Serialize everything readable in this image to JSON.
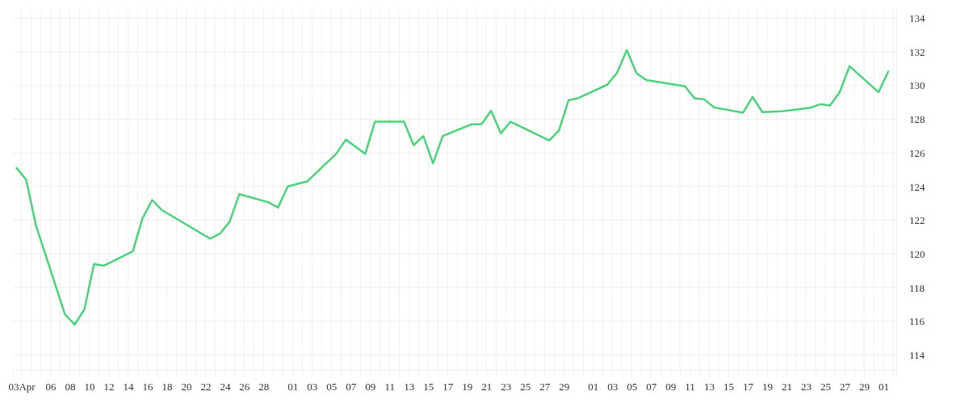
{
  "chart_data": {
    "type": "line",
    "x": [
      "--04-03",
      "--04-04",
      "--04-05",
      "--04-08",
      "--04-09",
      "--04-10",
      "--04-11",
      "--04-12",
      "--04-15",
      "--04-16",
      "--04-17",
      "--04-18",
      "--04-23",
      "--04-24",
      "--04-25",
      "--04-26",
      "--04-29",
      "--04-30",
      "--05-01",
      "--05-03",
      "--05-06",
      "--05-07",
      "--05-08",
      "--05-09",
      "--05-10",
      "--05-13",
      "--05-14",
      "--05-15",
      "--05-16",
      "--05-17",
      "--05-20",
      "--05-21",
      "--05-22",
      "--05-23",
      "--05-24",
      "--05-28",
      "--05-29",
      "--05-30",
      "--05-31",
      "--06-03",
      "--06-04",
      "--06-05",
      "--06-06",
      "--06-07",
      "--06-11",
      "--06-12",
      "--06-13",
      "--06-14",
      "--06-17",
      "--06-18",
      "--06-19",
      "--06-21",
      "--06-24",
      "--06-25",
      "--06-26",
      "--06-27",
      "--06-28",
      "--07-01",
      "--07-02"
    ],
    "series": [
      {
        "color": "#4cd27a",
        "values": [
          125.1,
          124.4,
          121.7,
          116.4,
          115.8,
          116.7,
          119.4,
          119.3,
          120.15,
          122.1,
          123.2,
          122.6,
          120.9,
          121.2,
          121.9,
          123.55,
          123.06,
          122.75,
          124.0,
          124.3,
          125.94,
          126.78,
          126.37,
          125.93,
          127.85,
          127.85,
          126.45,
          127.0,
          125.38,
          127.0,
          127.7,
          127.7,
          128.5,
          127.16,
          127.85,
          126.73,
          127.32,
          129.13,
          129.25,
          130.05,
          130.75,
          132.1,
          130.73,
          130.33,
          129.95,
          129.23,
          129.18,
          128.7,
          128.38,
          129.32,
          128.42,
          128.47,
          128.68,
          128.89,
          128.81,
          129.62,
          131.15,
          129.6,
          130.83
        ]
      }
    ],
    "xlim": [
      "--04-02T15:00",
      "--07-02T20:00"
    ],
    "ylim": [
      113.1,
      134.5
    ],
    "yticks": [
      114,
      116,
      118,
      120,
      122,
      124,
      126,
      128,
      130,
      132,
      134
    ],
    "xticks": [
      {
        "value": "--04-03T12:00",
        "label": "03Apr"
      },
      {
        "value": "--04-04T12:00",
        "label": null
      },
      {
        "value": "--04-05T12:00",
        "label": null
      },
      {
        "value": "--04-06T12:00",
        "label": "06"
      },
      {
        "value": "--04-07T12:00",
        "label": null
      },
      {
        "value": "--04-08T12:00",
        "label": "08"
      },
      {
        "value": "--04-09T12:00",
        "label": null
      },
      {
        "value": "--04-10T12:00",
        "label": "10"
      },
      {
        "value": "--04-11T12:00",
        "label": null
      },
      {
        "value": "--04-12T12:00",
        "label": "12"
      },
      {
        "value": "--04-13T12:00",
        "label": null
      },
      {
        "value": "--04-14T12:00",
        "label": "14"
      },
      {
        "value": "--04-15T12:00",
        "label": null
      },
      {
        "value": "--04-16T12:00",
        "label": "16"
      },
      {
        "value": "--04-17T12:00",
        "label": null
      },
      {
        "value": "--04-18T12:00",
        "label": "18"
      },
      {
        "value": "--04-19T12:00",
        "label": null
      },
      {
        "value": "--04-20T12:00",
        "label": "20"
      },
      {
        "value": "--04-21T12:00",
        "label": null
      },
      {
        "value": "--04-22T12:00",
        "label": "22"
      },
      {
        "value": "--04-23T12:00",
        "label": null
      },
      {
        "value": "--04-24T12:00",
        "label": "24"
      },
      {
        "value": "--04-25T12:00",
        "label": null
      },
      {
        "value": "--04-26T12:00",
        "label": "26"
      },
      {
        "value": "--04-27T12:00",
        "label": null
      },
      {
        "value": "--04-28T12:00",
        "label": "28"
      },
      {
        "value": "--04-29T12:00",
        "label": null
      },
      {
        "value": "--04-30T12:00",
        "label": null
      },
      {
        "value": "--05-01T12:00",
        "label": "01"
      },
      {
        "value": "--05-02T12:00",
        "label": null
      },
      {
        "value": "--05-03T12:00",
        "label": "03"
      },
      {
        "value": "--05-04T12:00",
        "label": null
      },
      {
        "value": "--05-05T12:00",
        "label": "05"
      },
      {
        "value": "--05-06T12:00",
        "label": null
      },
      {
        "value": "--05-07T12:00",
        "label": "07"
      },
      {
        "value": "--05-08T12:00",
        "label": null
      },
      {
        "value": "--05-09T12:00",
        "label": "09"
      },
      {
        "value": "--05-10T12:00",
        "label": null
      },
      {
        "value": "--05-11T12:00",
        "label": "11"
      },
      {
        "value": "--05-12T12:00",
        "label": null
      },
      {
        "value": "--05-13T12:00",
        "label": "13"
      },
      {
        "value": "--05-14T12:00",
        "label": null
      },
      {
        "value": "--05-15T12:00",
        "label": "15"
      },
      {
        "value": "--05-16T12:00",
        "label": null
      },
      {
        "value": "--05-17T12:00",
        "label": "17"
      },
      {
        "value": "--05-18T12:00",
        "label": null
      },
      {
        "value": "--05-19T12:00",
        "label": "19"
      },
      {
        "value": "--05-20T12:00",
        "label": null
      },
      {
        "value": "--05-21T12:00",
        "label": "21"
      },
      {
        "value": "--05-22T12:00",
        "label": null
      },
      {
        "value": "--05-23T12:00",
        "label": "23"
      },
      {
        "value": "--05-24T12:00",
        "label": null
      },
      {
        "value": "--05-25T12:00",
        "label": "25"
      },
      {
        "value": "--05-26T12:00",
        "label": null
      },
      {
        "value": "--05-27T12:00",
        "label": "27"
      },
      {
        "value": "--05-28T12:00",
        "label": null
      },
      {
        "value": "--05-29T12:00",
        "label": "29"
      },
      {
        "value": "--05-30T12:00",
        "label": null
      },
      {
        "value": "--05-31T12:00",
        "label": null
      },
      {
        "value": "--06-01T12:00",
        "label": "01"
      },
      {
        "value": "--06-02T12:00",
        "label": null
      },
      {
        "value": "--06-03T12:00",
        "label": "03"
      },
      {
        "value": "--06-04T12:00",
        "label": null
      },
      {
        "value": "--06-05T12:00",
        "label": "05"
      },
      {
        "value": "--06-06T12:00",
        "label": null
      },
      {
        "value": "--06-07T12:00",
        "label": "07"
      },
      {
        "value": "--06-08T12:00",
        "label": null
      },
      {
        "value": "--06-09T12:00",
        "label": "09"
      },
      {
        "value": "--06-10T12:00",
        "label": null
      },
      {
        "value": "--06-11T12:00",
        "label": "11"
      },
      {
        "value": "--06-12T12:00",
        "label": null
      },
      {
        "value": "--06-13T12:00",
        "label": "13"
      },
      {
        "value": "--06-14T12:00",
        "label": null
      },
      {
        "value": "--06-15T12:00",
        "label": "15"
      },
      {
        "value": "--06-16T12:00",
        "label": null
      },
      {
        "value": "--06-17T12:00",
        "label": "17"
      },
      {
        "value": "--06-18T12:00",
        "label": null
      },
      {
        "value": "--06-19T12:00",
        "label": "19"
      },
      {
        "value": "--06-20T12:00",
        "label": null
      },
      {
        "value": "--06-21T12:00",
        "label": "21"
      },
      {
        "value": "--06-22T12:00",
        "label": null
      },
      {
        "value": "--06-23T12:00",
        "label": "23"
      },
      {
        "value": "--06-24T12:00",
        "label": null
      },
      {
        "value": "--06-25T12:00",
        "label": "25"
      },
      {
        "value": "--06-26T12:00",
        "label": null
      },
      {
        "value": "--06-27T12:00",
        "label": "27"
      },
      {
        "value": "--06-28T12:00",
        "label": null
      },
      {
        "value": "--06-29T12:00",
        "label": "29"
      },
      {
        "value": "--06-30T12:00",
        "label": null
      },
      {
        "value": "--07-01T12:00",
        "label": "01"
      },
      {
        "value": "--07-02T12:00",
        "label": null
      }
    ],
    "grid": true,
    "marker": "none",
    "line_style": "solid"
  }
}
